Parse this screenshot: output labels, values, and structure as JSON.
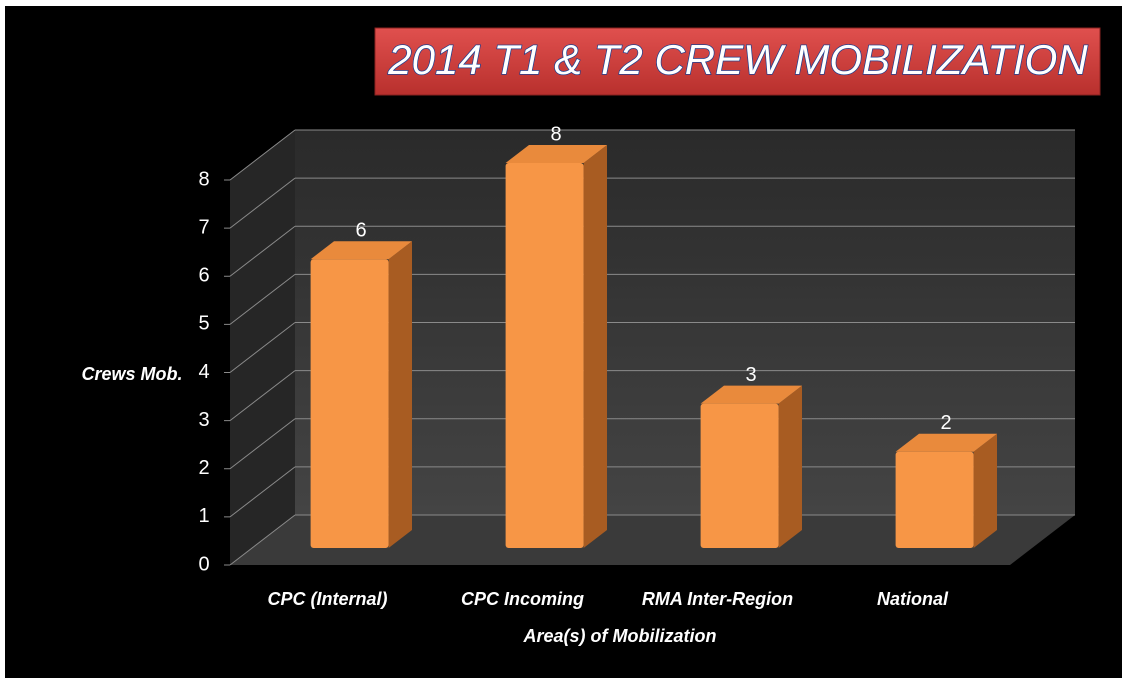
{
  "chart_data": {
    "type": "bar",
    "title": "2014 T1 & T2 CREW MOBILIZATION",
    "categories": [
      "CPC (Internal)",
      "CPC Incoming",
      "RMA Inter-Region",
      "National"
    ],
    "values": [
      6,
      8,
      3,
      2
    ],
    "color": "#f79646",
    "x_label": "Area(s) of Mobilization",
    "y_label": "Crews Mob.",
    "ylim": [
      0,
      8
    ],
    "yticks": [
      0,
      1,
      2,
      3,
      4,
      5,
      6,
      7,
      8
    ],
    "grid": true
  }
}
